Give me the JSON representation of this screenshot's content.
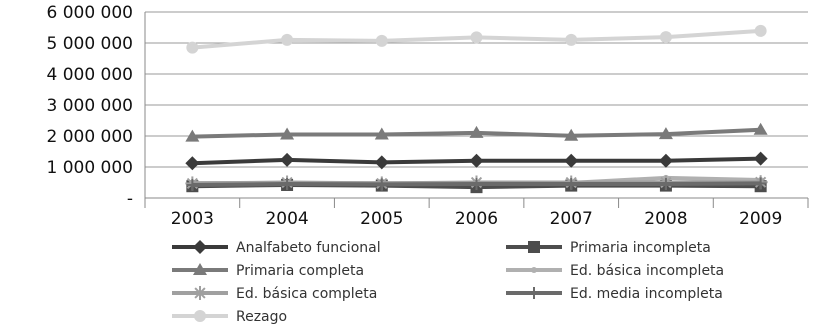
{
  "chart_data": {
    "type": "line",
    "title": "",
    "xlabel": "",
    "ylabel": "",
    "x": [
      "2003",
      "2004",
      "2005",
      "2006",
      "2007",
      "2008",
      "2009"
    ],
    "ylim": [
      0,
      6000000
    ],
    "yticks": [
      0,
      1000000,
      2000000,
      3000000,
      4000000,
      5000000,
      6000000
    ],
    "ytick_labels": [
      "-",
      "1 000 000",
      "2 000 000",
      "3 000 000",
      "4 000 000",
      "5 000 000",
      "6 000 000"
    ],
    "grid": "horizontal",
    "legend_position": "bottom",
    "series": [
      {
        "name": "Analfabeto funcional",
        "marker": "diamond",
        "color": "#3a3a3a",
        "values": [
          1120000,
          1230000,
          1150000,
          1200000,
          1200000,
          1200000,
          1270000
        ]
      },
      {
        "name": "Primaria incompleta",
        "marker": "square",
        "color": "#4d4d4d",
        "values": [
          380000,
          420000,
          400000,
          350000,
          400000,
          400000,
          380000
        ]
      },
      {
        "name": "Primaria completa",
        "marker": "triangle",
        "color": "#7a7a7a",
        "values": [
          1980000,
          2050000,
          2050000,
          2100000,
          2010000,
          2060000,
          2200000
        ]
      },
      {
        "name": "Ed. básica incompleta",
        "marker": "dot",
        "color": "#b0b0b0",
        "values": [
          480000,
          480000,
          480000,
          480000,
          490000,
          650000,
          580000
        ]
      },
      {
        "name": "Ed. básica completa",
        "marker": "star",
        "color": "#a0a0a0",
        "values": [
          470000,
          500000,
          470000,
          500000,
          500000,
          500000,
          510000
        ]
      },
      {
        "name": "Ed. media incompleta",
        "marker": "plus",
        "color": "#6a6a6a",
        "values": [
          420000,
          450000,
          440000,
          450000,
          450000,
          450000,
          470000
        ]
      },
      {
        "name": "Rezago",
        "marker": "circle",
        "color": "#d4d4d4",
        "values": [
          4850000,
          5100000,
          5070000,
          5180000,
          5100000,
          5190000,
          5390000
        ]
      }
    ]
  }
}
